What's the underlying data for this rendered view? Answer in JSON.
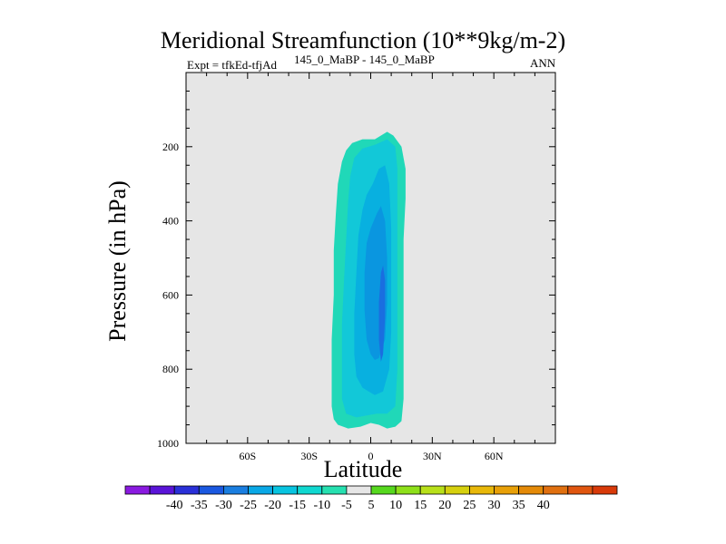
{
  "chart_data": {
    "type": "contour",
    "title": "Meridional Streamfunction (10**9kg/m-2)",
    "subtitle_left": "Expt = tfkEd-tfjAd",
    "subtitle_center": "145_0_MaBP - 145_0_MaBP",
    "subtitle_right": "ANN",
    "xlabel": "Latitude",
    "ylabel": "Pressure (in hPa)",
    "xlim": [
      -90,
      90
    ],
    "ylim": [
      1000,
      0
    ],
    "x_ticks": [
      -60,
      -30,
      0,
      30,
      60
    ],
    "x_tick_labels": [
      "60S",
      "30S",
      "0",
      "30N",
      "60N"
    ],
    "y_ticks": [
      200,
      400,
      600,
      800,
      1000
    ],
    "y_tick_labels": [
      "200",
      "400",
      "600",
      "800",
      "1000"
    ],
    "background_color": "#e6e6e6",
    "contour_levels": [
      {
        "level": -5,
        "color": "#20d8b8",
        "boundary": [
          [
            -11,
            960
          ],
          [
            -16,
            950
          ],
          [
            -18,
            935
          ],
          [
            -19,
            900
          ],
          [
            -19,
            820
          ],
          [
            -19,
            720
          ],
          [
            -18,
            600
          ],
          [
            -18,
            480
          ],
          [
            -17,
            380
          ],
          [
            -16,
            300
          ],
          [
            -14,
            240
          ],
          [
            -12,
            210
          ],
          [
            -9,
            190
          ],
          [
            -4,
            180
          ],
          [
            2,
            180
          ],
          [
            8,
            160
          ],
          [
            11,
            170
          ],
          [
            15,
            200
          ],
          [
            17,
            260
          ],
          [
            17,
            340
          ],
          [
            16,
            450
          ],
          [
            16,
            600
          ],
          [
            16,
            750
          ],
          [
            16,
            880
          ],
          [
            15,
            940
          ],
          [
            12,
            955
          ],
          [
            8,
            960
          ],
          [
            4,
            950
          ],
          [
            0,
            945
          ],
          [
            -5,
            955
          ]
        ]
      },
      {
        "level": -10,
        "color": "#12c8d8",
        "boundary": [
          [
            -7,
            930
          ],
          [
            -12,
            920
          ],
          [
            -14,
            880
          ],
          [
            -14,
            800
          ],
          [
            -14,
            680
          ],
          [
            -13,
            560
          ],
          [
            -12,
            450
          ],
          [
            -11,
            350
          ],
          [
            -10,
            280
          ],
          [
            -8,
            230
          ],
          [
            -4,
            205
          ],
          [
            2,
            195
          ],
          [
            8,
            180
          ],
          [
            12,
            200
          ],
          [
            13,
            260
          ],
          [
            13,
            360
          ],
          [
            13,
            500
          ],
          [
            13,
            650
          ],
          [
            13,
            800
          ],
          [
            12,
            900
          ],
          [
            8,
            920
          ],
          [
            3,
            920
          ],
          [
            -2,
            925
          ]
        ]
      },
      {
        "level": -15,
        "color": "#08b0e0",
        "boundary": [
          [
            -4,
            850
          ],
          [
            -7,
            820
          ],
          [
            -8,
            760
          ],
          [
            -8,
            650
          ],
          [
            -7,
            540
          ],
          [
            -6,
            440
          ],
          [
            -4,
            370
          ],
          [
            -2,
            330
          ],
          [
            1,
            300
          ],
          [
            4,
            260
          ],
          [
            7,
            250
          ],
          [
            9,
            300
          ],
          [
            10,
            420
          ],
          [
            10,
            560
          ],
          [
            10,
            700
          ],
          [
            9,
            800
          ],
          [
            6,
            860
          ],
          [
            2,
            870
          ],
          [
            -1,
            860
          ]
        ]
      },
      {
        "level": -20,
        "color": "#0a96e0",
        "boundary": [
          [
            0,
            760
          ],
          [
            -2,
            720
          ],
          [
            -3,
            640
          ],
          [
            -3,
            540
          ],
          [
            -2,
            460
          ],
          [
            0,
            420
          ],
          [
            3,
            380
          ],
          [
            5,
            360
          ],
          [
            7,
            400
          ],
          [
            8,
            500
          ],
          [
            8,
            620
          ],
          [
            7,
            720
          ],
          [
            4,
            770
          ],
          [
            2,
            775
          ]
        ]
      },
      {
        "level": -25,
        "color": "#1a6ee0",
        "boundary": [
          [
            5,
            780
          ],
          [
            4,
            720
          ],
          [
            4,
            620
          ],
          [
            5,
            540
          ],
          [
            6,
            520
          ],
          [
            7,
            560
          ],
          [
            7,
            660
          ],
          [
            6,
            760
          ]
        ]
      }
    ],
    "colorbar": {
      "colors": [
        "#8a1ae0",
        "#5a14d8",
        "#2a30d8",
        "#1a58e0",
        "#1a7ee0",
        "#0aa8e6",
        "#08c4e0",
        "#10d8d0",
        "#26e0b0",
        "#e6e6e6",
        "#56d81e",
        "#8ee01a",
        "#b8e01a",
        "#d6d00e",
        "#e8b80a",
        "#e8a008",
        "#e48a08",
        "#e07010",
        "#e05610",
        "#d83a0a"
      ],
      "labels": [
        "-40",
        "-35",
        "-30",
        "-25",
        "-20",
        "-15",
        "-10",
        "-5",
        "5",
        "10",
        "15",
        "20",
        "25",
        "30",
        "35",
        "40"
      ]
    }
  }
}
